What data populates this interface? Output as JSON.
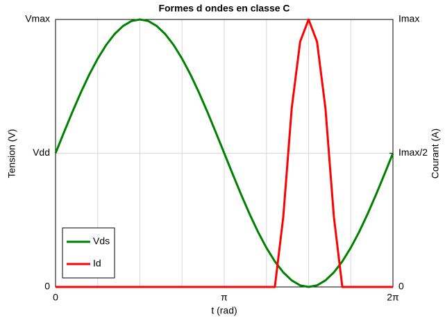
{
  "chart_data": {
    "type": "line",
    "title": "Formes d ondes en classe C",
    "x_label": "t (rad)",
    "y_label": "Tension (V)",
    "y2_label": "Courant (A)",
    "x": [
      0,
      0.1571,
      0.3142,
      0.4712,
      0.6283,
      0.7854,
      0.9425,
      1.0996,
      1.2566,
      1.4137,
      1.5708,
      1.7279,
      1.885,
      2.042,
      2.1991,
      2.3562,
      2.5133,
      2.6704,
      2.8274,
      2.9845,
      3.1416,
      3.2987,
      3.4558,
      3.6128,
      3.7699,
      3.927,
      4.0841,
      4.2412,
      4.3982,
      4.5553,
      4.7124,
      4.8695,
      5.0265,
      5.1836,
      5.3407,
      5.4978,
      5.6549,
      5.8119,
      5.969,
      6.1261,
      6.2832
    ],
    "series": [
      {
        "name": "Vds",
        "color": "#008000",
        "values": [
          1,
          1.156,
          1.309,
          1.454,
          1.588,
          1.707,
          1.809,
          1.891,
          1.951,
          1.988,
          2,
          1.988,
          1.951,
          1.891,
          1.809,
          1.707,
          1.588,
          1.454,
          1.309,
          1.156,
          1,
          0.844,
          0.691,
          0.546,
          0.412,
          0.293,
          0.191,
          0.109,
          0.049,
          0.012,
          0,
          0.012,
          0.049,
          0.109,
          0.191,
          0.293,
          0.412,
          0.546,
          0.691,
          0.844,
          1
        ]
      },
      {
        "name": "Id",
        "color": "#ff0000",
        "axis": "y2",
        "values": [
          0,
          0,
          0,
          0,
          0,
          0,
          0,
          0,
          0,
          0,
          0,
          0,
          0,
          0,
          0,
          0,
          0,
          0,
          0,
          0,
          0,
          0,
          0,
          0,
          0,
          0,
          0,
          0.262,
          0.668,
          0.917,
          1,
          0.917,
          0.668,
          0.262,
          0,
          0,
          0,
          0,
          0,
          0,
          0
        ]
      }
    ],
    "xlim": [
      0,
      6.2832
    ],
    "xticks": [
      0,
      {
        "value": 3.1416,
        "label": "π"
      },
      {
        "value": 6.2832,
        "label": "2π"
      }
    ],
    "xminorticks": [
      0.7854,
      1.5708,
      2.3562,
      3.927,
      4.7124,
      5.4978
    ],
    "ylim": [
      0,
      2
    ],
    "yticks": [
      0,
      {
        "value": 1,
        "label": "Vdd"
      },
      {
        "value": 2,
        "label": "Vmax"
      }
    ],
    "y2lim": [
      0,
      1
    ],
    "y2ticks": [
      0,
      {
        "value": 0.5,
        "label": "Imax/2"
      },
      {
        "value": 1,
        "label": "Imax"
      }
    ],
    "grid": true,
    "legend": "lower left"
  }
}
